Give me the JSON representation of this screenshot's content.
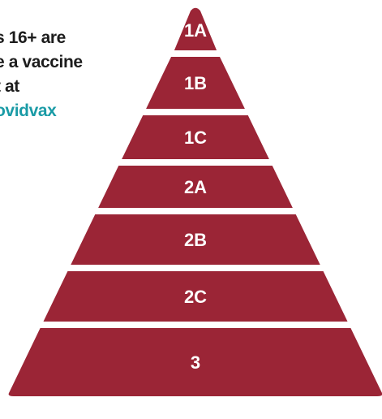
{
  "info": {
    "line1": "s 16+ are",
    "line2": "e a vaccine",
    "line3": "t at",
    "link": "ovidvax"
  },
  "pyramid": {
    "fill_color": "#9b2536",
    "tiers": [
      {
        "label": "1A"
      },
      {
        "label": "1B"
      },
      {
        "label": "1C"
      },
      {
        "label": "2A"
      },
      {
        "label": "2B"
      },
      {
        "label": "2C"
      },
      {
        "label": "3"
      }
    ]
  }
}
